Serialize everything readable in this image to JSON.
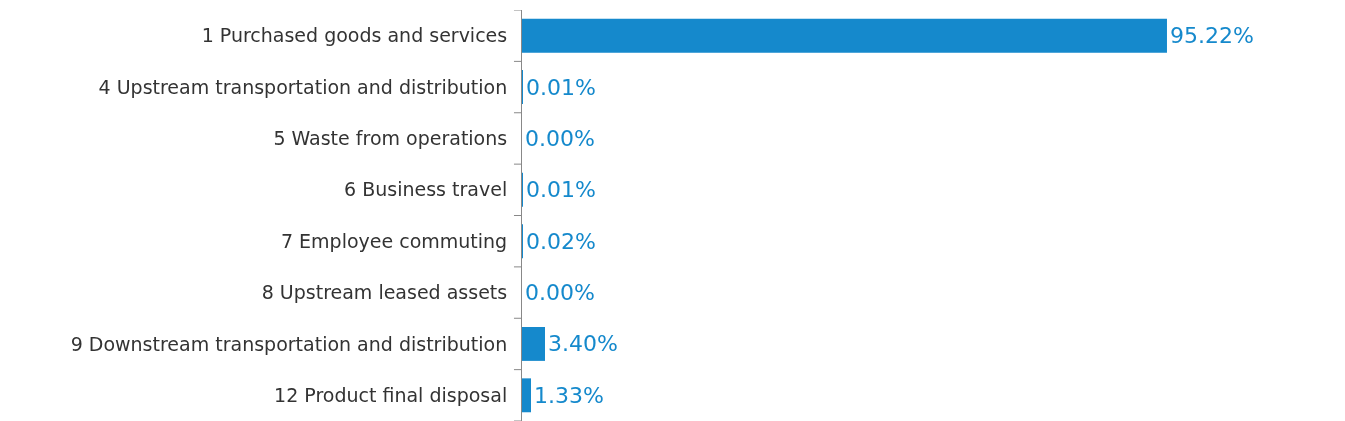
{
  "chart_data": {
    "type": "bar",
    "orientation": "horizontal",
    "categories": [
      "1 Purchased goods and services",
      "4 Upstream transportation and distribution",
      "5 Waste from operations",
      "6 Business travel",
      "7 Employee commuting",
      "8 Upstream leased assets",
      "9 Downstream transportation and distribution",
      "12 Product final disposal"
    ],
    "values": [
      95.22,
      0.01,
      0.0,
      0.01,
      0.02,
      0.0,
      3.4,
      1.33
    ],
    "value_labels": [
      "95.22%",
      "0.01%",
      "0.00%",
      "0.01%",
      "0.02%",
      "0.00%",
      "3.40%",
      "1.33%"
    ],
    "color": "#1589cc"
  }
}
